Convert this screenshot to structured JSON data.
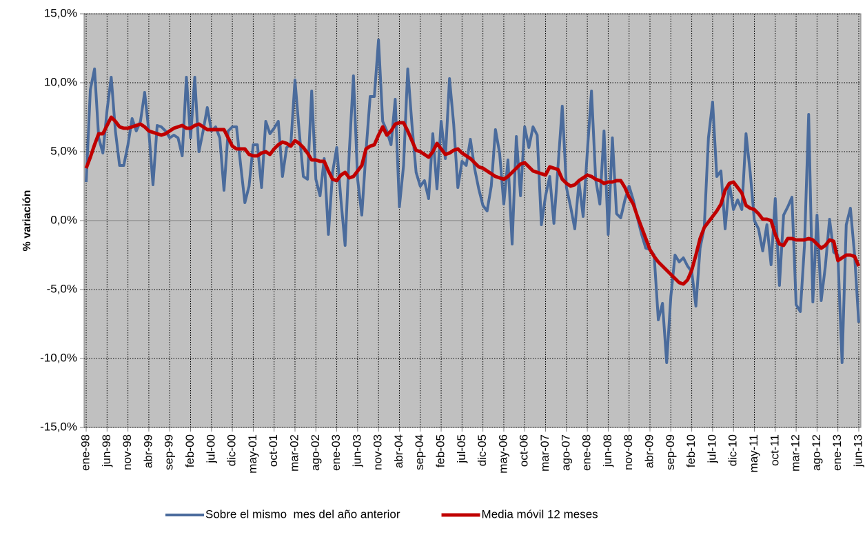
{
  "chart_data": {
    "type": "line",
    "y_label": "% variación",
    "categories": [
      "ene-98",
      null,
      null,
      null,
      null,
      "jun-98",
      null,
      null,
      null,
      null,
      "nov-98",
      null,
      null,
      null,
      null,
      "abr-99",
      null,
      null,
      null,
      null,
      "sep-99",
      null,
      null,
      null,
      null,
      "feb-00",
      null,
      null,
      null,
      null,
      "jul-00",
      null,
      null,
      null,
      null,
      "dic-00",
      null,
      null,
      null,
      null,
      "may-01",
      null,
      null,
      null,
      null,
      "oct-01",
      null,
      null,
      null,
      null,
      "mar-02",
      null,
      null,
      null,
      null,
      "ago-02",
      null,
      null,
      null,
      null,
      "ene-03",
      null,
      null,
      null,
      null,
      "jun-03",
      null,
      null,
      null,
      null,
      "nov-03",
      null,
      null,
      null,
      null,
      "abr-04",
      null,
      null,
      null,
      null,
      "sep-04",
      null,
      null,
      null,
      null,
      "feb-05",
      null,
      null,
      null,
      null,
      "jul-05",
      null,
      null,
      null,
      null,
      "dic-05",
      null,
      null,
      null,
      null,
      "may-06",
      null,
      null,
      null,
      null,
      "oct-06",
      null,
      null,
      null,
      null,
      "mar-07",
      null,
      null,
      null,
      null,
      "ago-07",
      null,
      null,
      null,
      null,
      "ene-08",
      null,
      null,
      null,
      null,
      "jun-08",
      null,
      null,
      null,
      null,
      "nov-08",
      null,
      null,
      null,
      null,
      "abr-09",
      null,
      null,
      null,
      null,
      "sep-09",
      null,
      null,
      null,
      null,
      "feb-10",
      null,
      null,
      null,
      null,
      "jul-10",
      null,
      null,
      null,
      null,
      "dic-10",
      null,
      null,
      null,
      null,
      "may-11",
      null,
      null,
      null,
      null,
      "oct-11",
      null,
      null,
      null,
      null,
      "mar-12",
      null,
      null,
      null,
      null,
      "ago-12",
      null,
      null,
      null,
      null,
      "ene-13",
      null,
      null,
      null,
      null,
      "jun-13"
    ],
    "series": [
      {
        "name": "Sobre el mismo  mes del año anterior",
        "color": "#4a6b9c",
        "width": 4,
        "values": [
          2.8,
          9.5,
          11.0,
          6.0,
          4.9,
          8.0,
          10.4,
          6.5,
          4.0,
          4.0,
          5.5,
          7.4,
          6.5,
          7.2,
          9.3,
          6.5,
          2.6,
          6.9,
          6.8,
          6.5,
          6.0,
          6.2,
          6.0,
          4.7,
          10.4,
          6.0,
          10.4,
          5.0,
          6.5,
          8.2,
          6.5,
          6.8,
          6.0,
          2.2,
          6.5,
          6.8,
          6.8,
          4.0,
          1.3,
          2.5,
          5.5,
          5.5,
          2.4,
          7.2,
          6.3,
          6.7,
          7.2,
          3.2,
          5.3,
          5.5,
          10.2,
          6.5,
          3.2,
          3.0,
          9.4,
          3.0,
          1.8,
          4.5,
          -1.0,
          3.5,
          5.3,
          1.5,
          -1.8,
          5.0,
          10.5,
          3.0,
          0.4,
          5.0,
          9.0,
          9.0,
          13.1,
          7.2,
          6.5,
          5.5,
          8.8,
          1.0,
          4.0,
          11.0,
          7.0,
          3.5,
          2.5,
          2.9,
          1.6,
          6.3,
          2.3,
          7.2,
          4.5,
          10.3,
          7.0,
          2.4,
          4.3,
          4.0,
          5.9,
          3.8,
          2.3,
          1.1,
          0.7,
          2.5,
          6.6,
          4.9,
          1.2,
          4.4,
          -1.7,
          6.1,
          1.8,
          6.8,
          5.3,
          6.8,
          6.2,
          -0.3,
          1.8,
          3.2,
          -0.2,
          4.0,
          8.3,
          2.4,
          1.0,
          -0.6,
          2.8,
          0.3,
          5.0,
          9.4,
          3.0,
          1.2,
          6.5,
          -1.0,
          6.0,
          0.5,
          0.2,
          1.5,
          2.5,
          1.5,
          0.2,
          -1.0,
          -2.0,
          -2.1,
          -2.5,
          -7.2,
          -6.0,
          -10.3,
          -5.5,
          -2.5,
          -3.0,
          -2.7,
          -3.3,
          -3.7,
          -6.2,
          -2.0,
          -0.5,
          6.0,
          8.6,
          3.2,
          3.6,
          -0.6,
          2.7,
          0.8,
          1.5,
          0.8,
          6.3,
          3.5,
          0.0,
          -0.6,
          -2.2,
          -0.3,
          -3.2,
          1.6,
          -4.7,
          0.4,
          1.0,
          1.7,
          -6.1,
          -6.6,
          -1.8,
          7.7,
          -5.9,
          0.4,
          -5.8,
          -3.3,
          0.1,
          -2.3,
          -2.5,
          -10.3,
          -0.3,
          0.9,
          -2.5,
          -7.4
        ]
      },
      {
        "name": "Media móvil 12 meses",
        "color": "#c00000",
        "width": 5,
        "values": [
          3.8,
          4.6,
          5.5,
          6.3,
          6.3,
          6.9,
          7.5,
          7.2,
          6.8,
          6.7,
          6.7,
          6.8,
          6.9,
          7.0,
          6.8,
          6.5,
          6.4,
          6.3,
          6.2,
          6.3,
          6.5,
          6.7,
          6.8,
          6.9,
          6.7,
          6.7,
          6.9,
          7.0,
          6.8,
          6.6,
          6.6,
          6.6,
          6.6,
          6.6,
          6.0,
          5.4,
          5.2,
          5.2,
          5.2,
          4.8,
          4.7,
          4.7,
          4.9,
          5.0,
          4.8,
          5.2,
          5.5,
          5.7,
          5.6,
          5.4,
          5.8,
          5.6,
          5.3,
          4.9,
          4.4,
          4.4,
          4.3,
          4.3,
          3.6,
          3.0,
          2.9,
          3.3,
          3.5,
          3.1,
          3.2,
          3.6,
          4.0,
          5.2,
          5.4,
          5.5,
          6.2,
          6.8,
          6.2,
          6.5,
          7.0,
          7.1,
          7.1,
          6.5,
          5.8,
          5.1,
          5.0,
          4.8,
          4.6,
          5.0,
          5.6,
          5.2,
          4.8,
          4.9,
          5.1,
          5.2,
          4.9,
          4.7,
          4.5,
          4.2,
          3.9,
          3.8,
          3.6,
          3.4,
          3.2,
          3.1,
          3.0,
          3.2,
          3.5,
          3.8,
          4.1,
          4.2,
          3.9,
          3.6,
          3.5,
          3.4,
          3.3,
          3.9,
          3.8,
          3.7,
          3.0,
          2.7,
          2.5,
          2.6,
          2.9,
          3.1,
          3.3,
          3.2,
          3.0,
          2.9,
          2.7,
          2.8,
          2.8,
          2.9,
          2.9,
          2.4,
          1.7,
          1.2,
          0.3,
          -0.5,
          -1.3,
          -2.1,
          -2.6,
          -3.0,
          -3.3,
          -3.6,
          -3.9,
          -4.2,
          -4.5,
          -4.6,
          -4.3,
          -3.6,
          -2.5,
          -1.3,
          -0.5,
          -0.1,
          0.3,
          0.7,
          1.2,
          2.2,
          2.7,
          2.8,
          2.4,
          2.0,
          1.1,
          0.9,
          0.8,
          0.5,
          0.1,
          0.1,
          0.0,
          -1.0,
          -1.7,
          -1.8,
          -1.3,
          -1.3,
          -1.4,
          -1.4,
          -1.4,
          -1.3,
          -1.4,
          -1.7,
          -2.0,
          -1.8,
          -1.4,
          -1.5,
          -2.9,
          -2.7,
          -2.5,
          -2.5,
          -2.6,
          -3.3
        ]
      }
    ],
    "ylim": [
      -15,
      15
    ],
    "yticks": [
      {
        "value": -15,
        "label": "-15,0%"
      },
      {
        "value": -10,
        "label": "-10,0%"
      },
      {
        "value": -5,
        "label": "-5,0%"
      },
      {
        "value": 0,
        "label": "0,0%"
      },
      {
        "value": 5,
        "label": "5,0%"
      },
      {
        "value": 10,
        "label": "10,0%"
      },
      {
        "value": 15,
        "label": "15,0%"
      }
    ],
    "grid": true,
    "legend": "bottom"
  }
}
